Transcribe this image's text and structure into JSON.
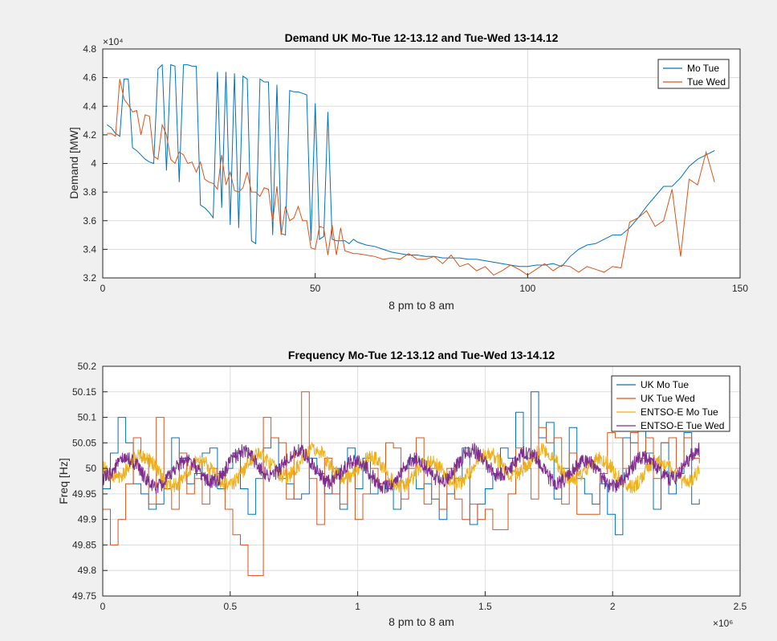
{
  "chart_data": [
    {
      "type": "line",
      "title": "Demand UK Mo-Tue 12-13.12 and Tue-Wed 13-14.12",
      "xlabel": "8 pm to 8 am",
      "ylabel": "Demand [MW]",
      "y_exponent": "×10⁴",
      "xlim": [
        0,
        150
      ],
      "ylim": [
        3.2,
        4.8
      ],
      "xticks": [
        "0",
        "50",
        "100",
        "150"
      ],
      "yticks": [
        "3.2",
        "3.4",
        "3.6",
        "3.8",
        "4",
        "4.2",
        "4.4",
        "4.6",
        "4.8"
      ],
      "grid": true,
      "legend": "top-right",
      "series": [
        {
          "name": "Mo Tue",
          "color": "#0072bd",
          "x": [
            1,
            2,
            3,
            4,
            5,
            6,
            7,
            8,
            9,
            10,
            11,
            12,
            13,
            14,
            15,
            16,
            17,
            18,
            19,
            20,
            21,
            22,
            23,
            24,
            25,
            26,
            27,
            28,
            29,
            30,
            31,
            32,
            33,
            34,
            35,
            36,
            37,
            38,
            39,
            40,
            41,
            42,
            43,
            44,
            45,
            46,
            47,
            48,
            49,
            50,
            51,
            52,
            53,
            54,
            55,
            56,
            57,
            58,
            59,
            60,
            62,
            64,
            66,
            68,
            70,
            72,
            74,
            76,
            78,
            80,
            82,
            84,
            86,
            88,
            90,
            92,
            94,
            96,
            98,
            100,
            102,
            104,
            106,
            108,
            110,
            112,
            114,
            116,
            118,
            120,
            122,
            124,
            126,
            128,
            130,
            132,
            134,
            136,
            138,
            140,
            142,
            144
          ],
          "values": [
            4.27,
            4.25,
            4.21,
            4.19,
            4.59,
            4.59,
            4.11,
            4.09,
            4.06,
            4.03,
            4.01,
            4.0,
            4.66,
            4.69,
            3.95,
            4.69,
            4.68,
            3.87,
            4.69,
            4.69,
            4.68,
            4.68,
            3.71,
            3.69,
            3.66,
            3.62,
            4.64,
            3.69,
            4.64,
            3.57,
            4.63,
            3.55,
            4.61,
            4.59,
            3.46,
            3.44,
            4.59,
            4.57,
            4.57,
            3.5,
            4.55,
            3.51,
            3.5,
            4.51,
            4.5,
            4.5,
            4.49,
            4.48,
            3.46,
            4.42,
            3.47,
            3.49,
            4.36,
            3.47,
            3.46,
            3.46,
            3.46,
            3.44,
            3.47,
            3.45,
            3.43,
            3.42,
            3.4,
            3.38,
            3.37,
            3.36,
            3.36,
            3.35,
            3.35,
            3.34,
            3.34,
            3.34,
            3.33,
            3.33,
            3.32,
            3.31,
            3.3,
            3.29,
            3.28,
            3.28,
            3.29,
            3.29,
            3.3,
            3.28,
            3.35,
            3.4,
            3.43,
            3.44,
            3.47,
            3.5,
            3.5,
            3.55,
            3.62,
            3.7,
            3.77,
            3.84,
            3.84,
            3.9,
            3.98,
            4.03,
            4.06,
            4.09
          ]
        },
        {
          "name": "Tue Wed",
          "color": "#d95319",
          "x": [
            1,
            2,
            3,
            4,
            5,
            6,
            7,
            8,
            9,
            10,
            11,
            12,
            13,
            14,
            15,
            16,
            17,
            18,
            19,
            20,
            21,
            22,
            23,
            24,
            25,
            26,
            27,
            28,
            29,
            30,
            31,
            32,
            33,
            34,
            35,
            36,
            37,
            38,
            39,
            40,
            41,
            42,
            43,
            44,
            45,
            46,
            47,
            48,
            49,
            50,
            51,
            52,
            53,
            54,
            55,
            56,
            57,
            58,
            59,
            60,
            62,
            64,
            66,
            68,
            70,
            72,
            74,
            76,
            78,
            80,
            82,
            84,
            86,
            88,
            90,
            92,
            94,
            96,
            98,
            100,
            102,
            104,
            106,
            108,
            110,
            112,
            114,
            116,
            118,
            120,
            122,
            124,
            126,
            128,
            130,
            132,
            134,
            136,
            138,
            140,
            142,
            144
          ],
          "values": [
            4.21,
            4.21,
            4.19,
            4.59,
            4.45,
            4.41,
            4.36,
            4.37,
            4.2,
            4.34,
            4.33,
            4.05,
            4.03,
            4.27,
            4.2,
            4.03,
            4.0,
            4.08,
            4.06,
            4.0,
            4.01,
            3.94,
            4.01,
            3.89,
            3.87,
            3.86,
            3.82,
            4.06,
            3.85,
            3.94,
            3.81,
            3.8,
            3.83,
            3.94,
            3.8,
            3.8,
            3.77,
            3.83,
            3.82,
            3.59,
            3.84,
            3.5,
            3.7,
            3.6,
            3.62,
            3.7,
            3.6,
            3.6,
            3.41,
            3.4,
            3.56,
            3.55,
            3.36,
            3.57,
            3.36,
            3.55,
            3.39,
            3.38,
            3.37,
            3.37,
            3.36,
            3.35,
            3.33,
            3.34,
            3.33,
            3.37,
            3.33,
            3.33,
            3.35,
            3.3,
            3.36,
            3.28,
            3.3,
            3.25,
            3.28,
            3.22,
            3.25,
            3.29,
            3.26,
            3.22,
            3.26,
            3.3,
            3.25,
            3.29,
            3.28,
            3.24,
            3.28,
            3.26,
            3.24,
            3.28,
            3.27,
            3.59,
            3.62,
            3.67,
            3.56,
            3.6,
            3.82,
            3.35,
            3.89,
            3.85,
            4.08,
            3.87
          ]
        }
      ]
    },
    {
      "type": "line",
      "title": "Frequency  Mo-Tue 12-13.12 and Tue-Wed 13-14.12",
      "xlabel": "8 pm to 8 am",
      "ylabel": "Freq [Hz]",
      "x_exponent": "×10⁶",
      "xlim": [
        0,
        2.5
      ],
      "ylim": [
        49.75,
        50.2
      ],
      "xticks": [
        "0",
        "0.5",
        "1",
        "1.5",
        "2",
        "2.5"
      ],
      "yticks": [
        "49.75",
        "49.8",
        "49.85",
        "49.9",
        "49.95",
        "50",
        "50.05",
        "50.1",
        "50.15",
        "50.2"
      ],
      "grid": true,
      "legend": "top-right",
      "series": [
        {
          "name": "UK Mo Tue",
          "color": "#0072bd",
          "x": [
            0,
            0.03,
            0.06,
            0.09,
            0.12,
            0.15,
            0.18,
            0.21,
            0.24,
            0.27,
            0.3,
            0.33,
            0.36,
            0.39,
            0.42,
            0.45,
            0.48,
            0.51,
            0.54,
            0.57,
            0.6,
            0.63,
            0.66,
            0.69,
            0.72,
            0.75,
            0.78,
            0.81,
            0.84,
            0.87,
            0.9,
            0.93,
            0.96,
            0.99,
            1.02,
            1.05,
            1.08,
            1.11,
            1.14,
            1.17,
            1.2,
            1.23,
            1.26,
            1.29,
            1.32,
            1.35,
            1.38,
            1.41,
            1.44,
            1.47,
            1.5,
            1.53,
            1.56,
            1.59,
            1.62,
            1.65,
            1.68,
            1.71,
            1.74,
            1.77,
            1.8,
            1.83,
            1.86,
            1.89,
            1.92,
            1.95,
            1.98,
            2.01,
            2.04,
            2.07,
            2.1,
            2.13,
            2.16,
            2.19,
            2.22,
            2.25,
            2.28,
            2.31,
            2.34
          ],
          "values": [
            49.96,
            50.03,
            50.1,
            50.05,
            49.97,
            49.95,
            49.92,
            49.93,
            49.98,
            50.06,
            50.02,
            49.97,
            49.99,
            50.03,
            50.04,
            49.96,
            50.0,
            50.03,
            49.96,
            49.91,
            49.98,
            50.04,
            50.06,
            49.98,
            49.97,
            49.94,
            49.95,
            50.02,
            49.99,
            49.95,
            50.0,
            49.92,
            50.04,
            49.96,
            50.02,
            49.95,
            49.97,
            49.96,
            49.92,
            50.0,
            50.02,
            49.96,
            49.97,
            49.94,
            49.9,
            49.95,
            49.98,
            50.04,
            49.89,
            49.93,
            49.96,
            49.99,
            50.04,
            50.02,
            50.11,
            50.02,
            50.15,
            50.06,
            50.09,
            49.94,
            50.0,
            50.08,
            49.98,
            49.95,
            49.93,
            49.97,
            49.91,
            49.87,
            50.06,
            50.05,
            50.16,
            50.03,
            49.92,
            50.05,
            49.95,
            49.99,
            50.07,
            49.93,
            49.94
          ]
        },
        {
          "name": "UK Tue Wed",
          "color": "#d95319",
          "x": [
            0,
            0.03,
            0.06,
            0.09,
            0.12,
            0.15,
            0.18,
            0.21,
            0.24,
            0.27,
            0.3,
            0.33,
            0.36,
            0.39,
            0.42,
            0.45,
            0.48,
            0.51,
            0.54,
            0.57,
            0.6,
            0.63,
            0.66,
            0.69,
            0.72,
            0.75,
            0.78,
            0.81,
            0.84,
            0.87,
            0.9,
            0.93,
            0.96,
            0.99,
            1.02,
            1.05,
            1.08,
            1.11,
            1.14,
            1.17,
            1.2,
            1.23,
            1.26,
            1.29,
            1.32,
            1.35,
            1.38,
            1.41,
            1.44,
            1.47,
            1.5,
            1.53,
            1.56,
            1.59,
            1.62,
            1.65,
            1.68,
            1.71,
            1.74,
            1.77,
            1.8,
            1.83,
            1.86,
            1.89,
            1.92,
            1.95,
            1.98,
            2.01,
            2.04,
            2.07,
            2.1,
            2.13,
            2.16,
            2.19,
            2.22,
            2.25,
            2.28,
            2.31,
            2.34
          ],
          "values": [
            49.92,
            49.85,
            49.9,
            49.97,
            50.06,
            50.02,
            49.93,
            50.1,
            49.96,
            49.92,
            50.03,
            49.95,
            49.98,
            49.93,
            50.0,
            49.99,
            49.92,
            49.87,
            49.85,
            49.79,
            49.79,
            50.1,
            50.06,
            50.05,
            49.94,
            50.03,
            50.15,
            49.98,
            49.89,
            50.02,
            49.95,
            49.93,
            50.01,
            49.9,
            49.95,
            50.0,
            49.97,
            50.05,
            50.04,
            49.94,
            50.0,
            50.06,
            49.93,
            50.0,
            49.92,
            50.0,
            49.94,
            49.9,
            49.93,
            49.9,
            49.92,
            49.88,
            49.88,
            49.95,
            50.04,
            50.0,
            49.94,
            50.08,
            50.05,
            50.06,
            49.93,
            50.03,
            49.91,
            49.91,
            49.91,
            49.99,
            50.07,
            50.06,
            50.0,
            50.07,
            50.02,
            50.06,
            49.98,
            50.05,
            50.06,
            50.0,
            50.06,
            50.02,
            50.01
          ]
        },
        {
          "name": "ENTSO-E Mo Tue",
          "color": "#edb120",
          "x_range": [
            0,
            2.34
          ],
          "mean": 50.0,
          "amplitude": 0.03
        },
        {
          "name": "ENTSO-E Tue Wed",
          "color": "#7e2f8e",
          "x_range": [
            0,
            2.34
          ],
          "mean": 50.0,
          "amplitude": 0.03
        }
      ]
    }
  ]
}
